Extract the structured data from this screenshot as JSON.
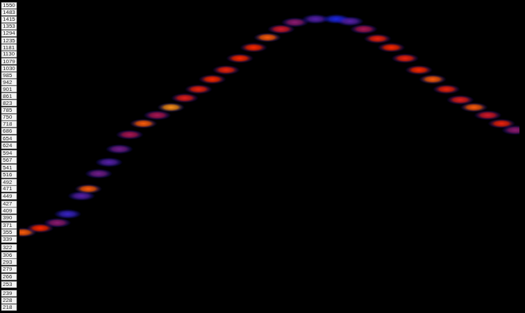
{
  "chart_data": {
    "type": "scatter",
    "x": [
      35,
      60,
      85,
      100,
      120,
      130,
      145,
      160,
      175,
      190,
      210,
      230,
      250,
      270,
      290,
      310,
      330,
      350,
      370,
      390,
      410,
      430,
      460,
      490,
      510,
      530,
      550,
      570,
      590,
      610,
      630,
      650,
      670,
      690,
      710,
      730,
      750
    ],
    "values": [
      355,
      365,
      378,
      400,
      450,
      471,
      520,
      560,
      610,
      670,
      720,
      760,
      800,
      850,
      900,
      960,
      1020,
      1100,
      1180,
      1260,
      1330,
      1390,
      1420,
      1420,
      1400,
      1330,
      1250,
      1180,
      1100,
      1020,
      960,
      900,
      840,
      800,
      760,
      720,
      690
    ],
    "intensity": [
      0.9,
      0.85,
      0.55,
      0.4,
      0.45,
      0.9,
      0.5,
      0.45,
      0.5,
      0.6,
      0.9,
      0.6,
      0.95,
      0.75,
      0.8,
      0.85,
      0.8,
      0.85,
      0.85,
      0.9,
      0.7,
      0.55,
      0.45,
      0.35,
      0.45,
      0.6,
      0.8,
      0.85,
      0.8,
      0.85,
      0.9,
      0.8,
      0.75,
      0.9,
      0.7,
      0.8,
      0.55
    ],
    "xlim": [
      30,
      756
    ],
    "ylim": [
      218,
      1550
    ],
    "yticks": [
      218,
      228,
      239,
      253,
      266,
      279,
      293,
      306,
      322,
      339,
      355,
      371,
      390,
      409,
      427,
      449,
      471,
      492,
      516,
      541,
      567,
      594,
      624,
      654,
      686,
      718,
      750,
      785,
      823,
      861,
      901,
      942,
      985,
      1030,
      1079,
      1130,
      1181,
      1235,
      1294,
      1353,
      1415,
      1483,
      1550
    ],
    "log": "y",
    "grid": false,
    "tick_labels": "y"
  }
}
